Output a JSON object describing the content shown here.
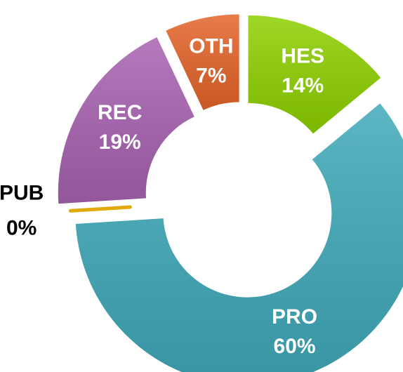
{
  "chart_data": {
    "type": "donut",
    "categories": [
      "HES",
      "PRO",
      "PUB",
      "REC",
      "OTH"
    ],
    "values": [
      14,
      60,
      0,
      19,
      7
    ],
    "value_labels": [
      "14%",
      "60%",
      "0%",
      "19%",
      "7%"
    ],
    "colors": [
      "#8ed100",
      "#3fa9b9",
      "#e1aa0a",
      "#a862b1",
      "#e4652a"
    ]
  }
}
